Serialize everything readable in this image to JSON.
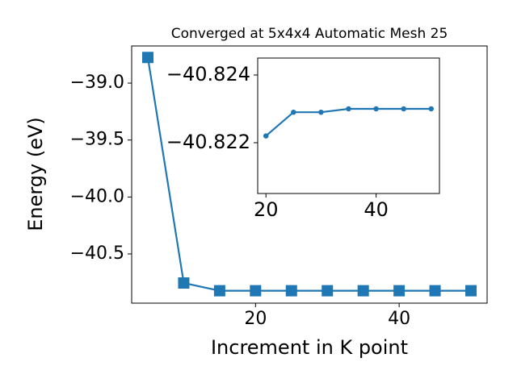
{
  "chart_data": [
    {
      "type": "line",
      "title": "Converged at 5x4x4 Automatic Mesh 25",
      "x_label": "Increment in K point",
      "y_label": "Energy (eV)",
      "x": [
        5,
        10,
        15,
        20,
        25,
        30,
        35,
        40,
        45,
        50
      ],
      "series": [
        {
          "color": "#1f77b4",
          "marker": "square",
          "values": [
            -38.775,
            -40.755,
            -40.823,
            -40.823,
            -40.823,
            -40.823,
            -40.823,
            -40.823,
            -40.823,
            -40.823
          ]
        }
      ],
      "xlim": [
        2.75,
        52.25
      ],
      "xticks": [
        20,
        40
      ],
      "ylim": [
        -40.932,
        -38.674
      ],
      "yticks": [
        {
          "value": -39.0,
          "label": "−39.0"
        },
        {
          "value": -39.5,
          "label": "−39.5"
        },
        {
          "value": -40.0,
          "label": "−40.0"
        },
        {
          "value": -40.5,
          "label": "−40.5"
        }
      ]
    },
    {
      "type": "line",
      "x": [
        20,
        25,
        30,
        35,
        40,
        45,
        50
      ],
      "series": [
        {
          "color": "#1f77b4",
          "marker": "circle",
          "values": [
            -40.8222,
            -40.8229,
            -40.8229,
            -40.823,
            -40.823,
            -40.823,
            -40.823
          ]
        }
      ],
      "xlim": [
        18.5,
        51.5
      ],
      "xticks": [
        20,
        40
      ],
      "ylim": [
        -40.8205,
        -40.8245
      ],
      "yticks": [
        {
          "value": -40.824,
          "label": "−40.824"
        },
        {
          "value": -40.822,
          "label": "−40.822"
        }
      ]
    }
  ]
}
